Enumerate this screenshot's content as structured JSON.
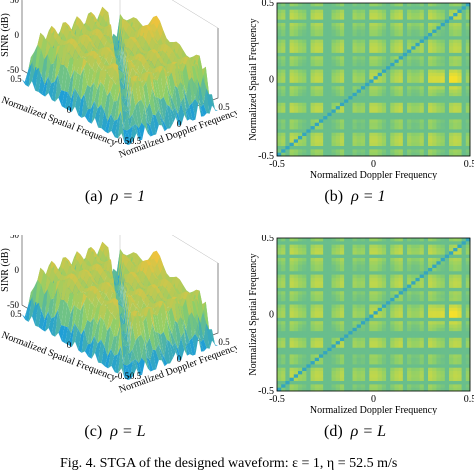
{
  "panels": [
    {
      "id": "a",
      "caption_prefix": "(a)",
      "caption_math": "ρ = 1",
      "type": "surface3d",
      "zlabel": "SINR (dB)",
      "xlabel": "Normalized Spatial Frequency",
      "ylabel": "Normalized Doppler Frequency",
      "zticks": [
        "50",
        "0",
        "-50"
      ],
      "xticks": [
        "0.5",
        "0",
        "-0.5"
      ],
      "yticks": [
        "-0.5",
        "0",
        "0.5"
      ]
    },
    {
      "id": "b",
      "caption_prefix": "(b)",
      "caption_math": "ρ = 1",
      "type": "heatmap",
      "xlabel": "Normalized Doppler Frequency",
      "ylabel": "Normalized Spatial Frequency",
      "xticks": [
        "-0.5",
        "0",
        "0.5"
      ],
      "yticks": [
        "0.5",
        "0",
        "-0.5"
      ]
    },
    {
      "id": "c",
      "caption_prefix": "(c)",
      "caption_math": "ρ = L",
      "type": "surface3d",
      "zlabel": "SINR (dB)",
      "xlabel": "Normalized Spatial Frequency",
      "ylabel": "Normalized Doppler Frequency",
      "zticks": [
        "50",
        "0",
        "-50"
      ],
      "xticks": [
        "0.5",
        "0",
        "-0.5"
      ],
      "yticks": [
        "-0.5",
        "0",
        "0.5"
      ]
    },
    {
      "id": "d",
      "caption_prefix": "(d)",
      "caption_math": "ρ = L",
      "type": "heatmap",
      "xlabel": "Normalized Doppler Frequency",
      "ylabel": "Normalized Spatial Frequency",
      "xticks": [
        "-0.5",
        "0",
        "0.5"
      ],
      "yticks": [
        "0.5",
        "0",
        "-0.5"
      ]
    }
  ],
  "figure_caption": "Fig. 4.   STGA of the designed waveform: ε = 1, η = 52.5 m/s",
  "colors": {
    "heat_low": "#2aa0c8",
    "heat_mid": "#8ccf6a",
    "heat_high": "#f6e02a",
    "surface_low": "#1f9fd6",
    "surface_high": "#f2c23a"
  },
  "chart_data": [
    {
      "type": "heatmap",
      "title": "(b) ρ = 1",
      "xlabel": "Normalized Doppler Frequency",
      "ylabel": "Normalized Spatial Frequency",
      "xlim": [
        -0.5,
        0.5
      ],
      "ylim": [
        -0.5,
        0.5
      ],
      "peak": {
        "x": 0.38,
        "y": 0.0
      },
      "notch": "diagonal clutter ridge along x = y"
    },
    {
      "type": "heatmap",
      "title": "(d) ρ = L",
      "xlabel": "Normalized Doppler Frequency",
      "ylabel": "Normalized Spatial Frequency",
      "xlim": [
        -0.5,
        0.5
      ],
      "ylim": [
        -0.5,
        0.5
      ],
      "peak": {
        "x": 0.38,
        "y": 0.0
      },
      "notch": "diagonal clutter ridge along x = y"
    }
  ]
}
